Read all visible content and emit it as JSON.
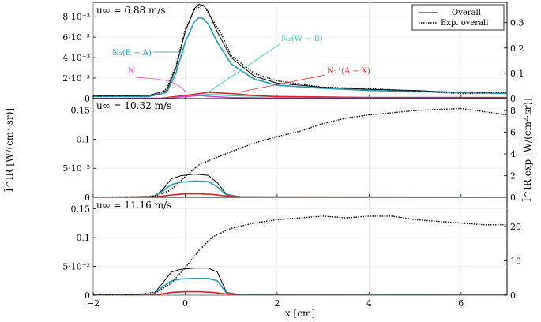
{
  "figure": {
    "x_axis_label": "x [cm]",
    "y_left_label": "Ĩ^IR [W/(cm²·sr)]",
    "y_right_label": "Ĩ^IR,exp [W/(cm²·sr)]",
    "legend": {
      "overall": "Overall",
      "exp_overall": "Exp. overall"
    },
    "colors": {
      "overall": "#000000",
      "exp": "#000000",
      "n2_ba": "#1f9bb5",
      "n2_wb": "#2ed3b7",
      "n2p_ax": "#e02020",
      "n": "#e040e0"
    }
  },
  "chart_data": [
    {
      "type": "line",
      "panel_label": "u∞ = 6.88 m/s",
      "xlim": [
        -2,
        7
      ],
      "ylim_left": [
        0,
        0.0094
      ],
      "ylim_right": [
        0,
        0.38
      ],
      "x_ticks": [
        "−2",
        "0",
        "2",
        "4",
        "6"
      ],
      "y_left_ticks": [
        {
          "v": 0,
          "t": "0"
        },
        {
          "v": 0.002,
          "t": "2·10⁻³"
        },
        {
          "v": 0.004,
          "t": "4·10⁻³"
        },
        {
          "v": 0.006,
          "t": "6·10⁻³"
        },
        {
          "v": 0.008,
          "t": "8·10⁻³"
        }
      ],
      "y_right_ticks": [
        {
          "v": 0,
          "t": "0"
        },
        {
          "v": 0.1,
          "t": "0.1"
        },
        {
          "v": 0.2,
          "t": "0.2"
        },
        {
          "v": 0.3,
          "t": "0.3"
        }
      ],
      "series": [
        {
          "name": "Overall",
          "key": "overall",
          "axis": "left",
          "x": [
            -2,
            -0.8,
            -0.4,
            -0.2,
            0,
            0.2,
            0.3,
            0.4,
            0.5,
            0.7,
            1,
            1.5,
            2,
            3,
            4,
            5,
            6,
            7
          ],
          "y": [
            0.0003,
            0.0003,
            0.0008,
            0.003,
            0.0065,
            0.0088,
            0.0092,
            0.0091,
            0.0085,
            0.0065,
            0.004,
            0.0022,
            0.0015,
            0.0011,
            0.0009,
            0.0008,
            0.0006,
            0.0005
          ]
        },
        {
          "name": "N₂(B − A)",
          "key": "n2_ba",
          "axis": "left",
          "x": [
            -2,
            -0.8,
            -0.4,
            -0.2,
            0,
            0.2,
            0.3,
            0.4,
            0.5,
            0.7,
            1,
            1.5,
            2,
            3,
            4,
            5,
            6,
            7
          ],
          "y": [
            0.0002,
            0.0002,
            0.0006,
            0.0025,
            0.0055,
            0.0075,
            0.0079,
            0.0078,
            0.0073,
            0.0055,
            0.0034,
            0.0019,
            0.0013,
            0.001,
            0.0008,
            0.0007,
            0.0006,
            0.0005
          ]
        },
        {
          "name": "N₂(W − B)",
          "key": "n2_wb",
          "axis": "left",
          "x": [
            -2,
            -0.5,
            0,
            0.5,
            1,
            2,
            4,
            7
          ],
          "y": [
            0,
            0,
            0.0002,
            0.0004,
            0.0003,
            0.0002,
            0.0001,
            0.0001
          ]
        },
        {
          "name": "N₂⁺(A − X)",
          "key": "n2p_ax",
          "axis": "left",
          "x": [
            -2,
            -0.5,
            0,
            0.5,
            1,
            1.5,
            2,
            4,
            7
          ],
          "y": [
            0,
            5e-05,
            0.0003,
            0.0006,
            0.0005,
            0.0003,
            0.0002,
            0.0001,
            0.0001
          ]
        },
        {
          "name": "N",
          "key": "n",
          "axis": "left",
          "x": [
            -2,
            -0.5,
            0,
            0.3,
            0.6,
            1,
            2,
            7
          ],
          "y": [
            0,
            2e-05,
            0.0002,
            0.0003,
            0.0002,
            0.0001,
            5e-05,
            0
          ]
        },
        {
          "name": "Exp. overall",
          "key": "exp",
          "axis": "right",
          "x": [
            -2,
            -1,
            -0.6,
            -0.4,
            -0.2,
            0,
            0.2,
            0.4,
            0.6,
            0.8,
            1,
            1.5,
            2,
            3,
            4,
            5,
            6,
            7
          ],
          "y": [
            0.01,
            0.012,
            0.015,
            0.04,
            0.13,
            0.27,
            0.35,
            0.37,
            0.31,
            0.25,
            0.17,
            0.1,
            0.07,
            0.045,
            0.04,
            0.03,
            0.02,
            0.025
          ]
        }
      ],
      "annotations": [
        {
          "text": "N₂(B − A)",
          "key": "n2_ba"
        },
        {
          "text": "N₂(W − B)",
          "key": "n2_wb"
        },
        {
          "text": "N₂⁺(A − X)",
          "key": "n2p_ax"
        },
        {
          "text": "N",
          "key": "n"
        }
      ]
    },
    {
      "type": "line",
      "panel_label": "u∞ = 10.32 m/s",
      "xlim": [
        -2,
        7
      ],
      "ylim_left": [
        0,
        0.17
      ],
      "ylim_right": [
        0,
        9.1
      ],
      "x_ticks": [
        "−2",
        "0",
        "2",
        "4",
        "6"
      ],
      "y_left_ticks": [
        {
          "v": 0,
          "t": "0"
        },
        {
          "v": 0.05,
          "t": "5·10⁻²"
        },
        {
          "v": 0.1,
          "t": "0.1"
        },
        {
          "v": 0.15,
          "t": "0.15"
        }
      ],
      "y_right_ticks": [
        {
          "v": 0,
          "t": "0"
        },
        {
          "v": 2,
          "t": "2"
        },
        {
          "v": 4,
          "t": "4"
        },
        {
          "v": 6,
          "t": "6"
        },
        {
          "v": 8,
          "t": "8"
        }
      ],
      "series": [
        {
          "name": "Overall",
          "key": "overall",
          "axis": "left",
          "x": [
            -2,
            -0.7,
            -0.5,
            -0.3,
            -0.1,
            0.2,
            0.5,
            0.7,
            0.9,
            1.2,
            2,
            7
          ],
          "y": [
            0,
            0.001,
            0.012,
            0.032,
            0.037,
            0.04,
            0.038,
            0.025,
            0.005,
            0.001,
            0.0005,
            0.0003
          ]
        },
        {
          "name": "N₂(B − A)",
          "key": "n2_ba",
          "axis": "left",
          "x": [
            -2,
            -0.7,
            -0.5,
            -0.3,
            -0.1,
            0.2,
            0.5,
            0.7,
            0.9,
            1.2,
            2,
            7
          ],
          "y": [
            0,
            0.001,
            0.01,
            0.022,
            0.026,
            0.028,
            0.027,
            0.018,
            0.004,
            0.001,
            0.0005,
            0.0003
          ]
        },
        {
          "name": "N₂⁺(A − X)",
          "key": "n2p_ax",
          "axis": "left",
          "x": [
            -2,
            -0.6,
            -0.3,
            0,
            0.3,
            0.6,
            0.9,
            1.2,
            7
          ],
          "y": [
            0,
            0.001,
            0.004,
            0.006,
            0.006,
            0.005,
            0.002,
            0.0005,
            0.0002
          ]
        },
        {
          "name": "Exp. overall",
          "key": "exp",
          "axis": "right",
          "x": [
            -2,
            -1,
            -0.6,
            -0.3,
            0,
            0.3,
            0.7,
            1,
            1.5,
            2,
            2.5,
            3,
            3.5,
            4,
            4.5,
            5,
            5.5,
            6,
            6.5,
            7
          ],
          "y": [
            0.02,
            0.04,
            0.15,
            0.7,
            1.9,
            3.0,
            3.7,
            4.2,
            5.0,
            5.6,
            6.1,
            6.8,
            7.3,
            7.6,
            7.8,
            8.0,
            8.1,
            8.2,
            7.9,
            7.6
          ]
        }
      ]
    },
    {
      "type": "line",
      "panel_label": "u∞ = 11.16 m/s",
      "xlim": [
        -2,
        7
      ],
      "ylim_left": [
        0,
        0.17
      ],
      "ylim_right": [
        0,
        28.5
      ],
      "x_ticks": [
        "−2",
        "0",
        "2",
        "4",
        "6"
      ],
      "y_left_ticks": [
        {
          "v": 0,
          "t": "0"
        },
        {
          "v": 0.05,
          "t": "5·10⁻²"
        },
        {
          "v": 0.1,
          "t": "0.1"
        },
        {
          "v": 0.15,
          "t": "0.15"
        }
      ],
      "y_right_ticks": [
        {
          "v": 0,
          "t": "0"
        },
        {
          "v": 10,
          "t": "10"
        },
        {
          "v": 20,
          "t": "20"
        }
      ],
      "series": [
        {
          "name": "Overall",
          "key": "overall",
          "axis": "left",
          "x": [
            -2,
            -0.7,
            -0.5,
            -0.3,
            -0.1,
            0.2,
            0.5,
            0.7,
            0.9,
            1.2,
            2,
            7
          ],
          "y": [
            0,
            0.001,
            0.02,
            0.04,
            0.045,
            0.047,
            0.047,
            0.04,
            0.005,
            0.001,
            0.0005,
            0.0003
          ]
        },
        {
          "name": "N₂(B − A)",
          "key": "n2_ba",
          "axis": "left",
          "x": [
            -2,
            -0.7,
            -0.5,
            -0.3,
            -0.1,
            0.2,
            0.5,
            0.7,
            0.9,
            1.2,
            2,
            7
          ],
          "y": [
            0,
            0.001,
            0.014,
            0.025,
            0.028,
            0.029,
            0.029,
            0.025,
            0.004,
            0.001,
            0.0005,
            0.0003
          ]
        },
        {
          "name": "N₂⁺(A − X)",
          "key": "n2p_ax",
          "axis": "left",
          "x": [
            -2,
            -0.6,
            -0.3,
            0,
            0.3,
            0.6,
            0.9,
            1.2,
            7
          ],
          "y": [
            0,
            0.001,
            0.005,
            0.006,
            0.006,
            0.005,
            0.002,
            0.0005,
            0.0002
          ]
        },
        {
          "name": "Exp. overall",
          "key": "exp",
          "axis": "right",
          "x": [
            -2,
            -1,
            -0.6,
            -0.3,
            0,
            0.3,
            0.6,
            1,
            1.5,
            2,
            2.5,
            3,
            3.5,
            4,
            4.5,
            5,
            5.5,
            6,
            6.5,
            7
          ],
          "y": [
            0.05,
            0.2,
            1.0,
            3.5,
            8.0,
            13.0,
            17.0,
            19.5,
            21.0,
            22.0,
            22.5,
            23.0,
            22.5,
            23.0,
            23.0,
            22.0,
            21.5,
            21.0,
            20.5,
            20.5
          ]
        }
      ]
    }
  ]
}
